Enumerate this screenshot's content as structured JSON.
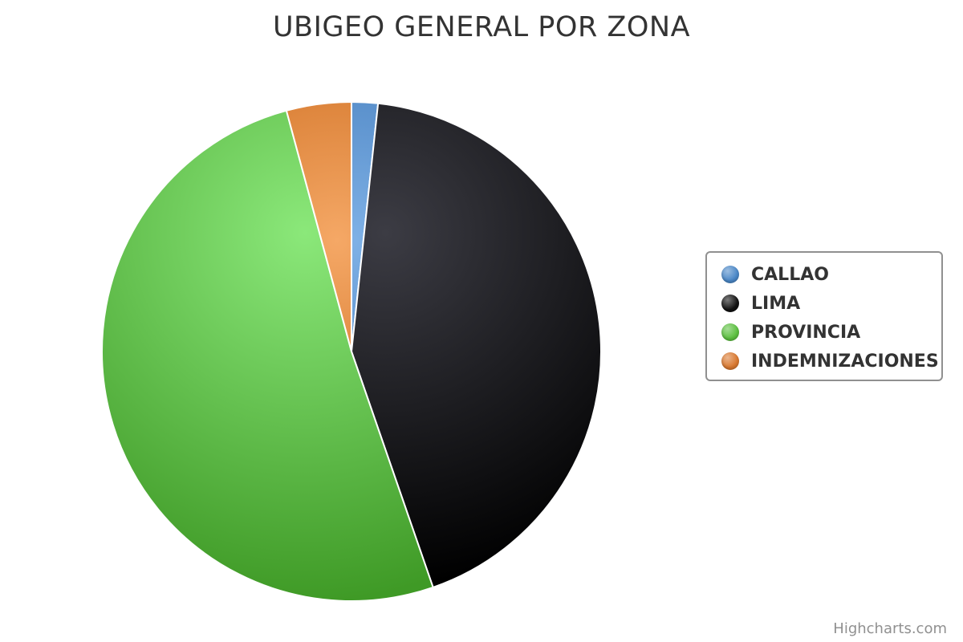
{
  "chart_data": {
    "type": "pie",
    "title": "UBIGEO GENERAL POR ZONA",
    "categories": [
      "CALLAO",
      "LIMA",
      "PROVINCIA",
      "INDEMNIZACIONES"
    ],
    "values": [
      1.7,
      43.0,
      51.1,
      4.2
    ],
    "colors": [
      "#4572A7",
      "#0a0a0a",
      "#50B432",
      "#E07B2A"
    ],
    "legend_placement": "right"
  },
  "legend": {
    "items": [
      {
        "label": "CALLAO",
        "color": "#4A87C7"
      },
      {
        "label": "LIMA",
        "color": "#111111"
      },
      {
        "label": "PROVINCIA",
        "color": "#5CC040"
      },
      {
        "label": "INDEMNIZACIONES",
        "color": "#D9782F"
      }
    ]
  },
  "credits": "Highcharts.com"
}
